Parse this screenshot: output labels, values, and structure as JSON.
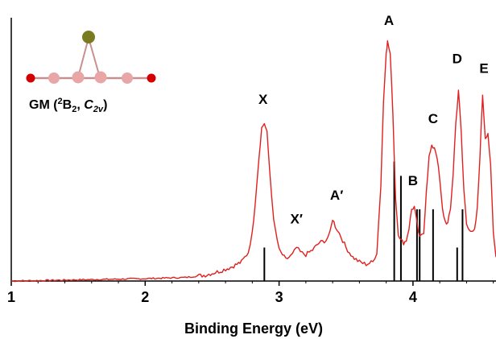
{
  "chart_data": {
    "type": "line",
    "xlabel": "Binding Energy (eV)",
    "ylabel": "",
    "xlim": [
      1.0,
      4.62
    ],
    "ylim": [
      0,
      1.0
    ],
    "xticks": [
      1,
      2,
      3,
      4
    ],
    "tick_labels": [
      "1",
      "2",
      "3",
      "4"
    ],
    "grid": false,
    "spectrum_color": "#e0201e",
    "stick_color": "#000000",
    "series": [
      {
        "x": [
          1.0,
          1.5,
          2.0,
          2.3,
          2.45,
          2.55,
          2.65,
          2.72,
          2.77,
          2.8,
          2.82,
          2.85,
          2.87,
          2.89,
          2.91,
          2.93,
          2.96,
          3.0,
          3.05,
          3.1,
          3.13,
          3.16,
          3.2,
          3.25,
          3.3,
          3.35,
          3.38,
          3.4,
          3.42,
          3.45,
          3.5,
          3.55,
          3.6,
          3.65,
          3.7,
          3.73,
          3.76,
          3.78,
          3.8,
          3.81,
          3.83,
          3.85,
          3.87,
          3.89,
          3.91,
          3.93,
          3.95,
          3.97,
          3.99,
          4.01,
          4.03,
          4.05,
          4.08,
          4.1,
          4.12,
          4.14,
          4.16,
          4.18,
          4.2,
          4.22,
          4.24,
          4.26,
          4.28,
          4.3,
          4.32,
          4.34,
          4.36,
          4.38,
          4.4,
          4.42,
          4.44,
          4.46,
          4.48,
          4.5,
          4.52,
          4.54,
          4.56,
          4.58,
          4.6,
          4.62
        ],
        "y": [
          0.0,
          0.005,
          0.01,
          0.015,
          0.025,
          0.04,
          0.06,
          0.08,
          0.12,
          0.2,
          0.32,
          0.52,
          0.64,
          0.66,
          0.62,
          0.46,
          0.25,
          0.13,
          0.09,
          0.11,
          0.14,
          0.12,
          0.11,
          0.13,
          0.16,
          0.17,
          0.2,
          0.26,
          0.23,
          0.2,
          0.14,
          0.1,
          0.08,
          0.07,
          0.08,
          0.12,
          0.4,
          0.75,
          0.96,
          1.0,
          0.95,
          0.7,
          0.35,
          0.2,
          0.17,
          0.16,
          0.17,
          0.22,
          0.3,
          0.31,
          0.24,
          0.18,
          0.2,
          0.38,
          0.52,
          0.56,
          0.56,
          0.52,
          0.42,
          0.3,
          0.25,
          0.24,
          0.3,
          0.45,
          0.66,
          0.8,
          0.62,
          0.38,
          0.24,
          0.22,
          0.2,
          0.21,
          0.3,
          0.52,
          0.78,
          0.6,
          0.62,
          0.48,
          0.2,
          0.1
        ]
      }
    ],
    "sticks": {
      "x": [
        2.89,
        3.86,
        3.91,
        4.03,
        4.05,
        4.15,
        4.33,
        4.37
      ],
      "y": [
        0.14,
        0.5,
        0.44,
        0.3,
        0.3,
        0.3,
        0.14,
        0.3
      ]
    },
    "annotations": [
      {
        "text": "X",
        "x": 2.88,
        "y": 0.74
      },
      {
        "text": "X′",
        "x": 3.13,
        "y": 0.24
      },
      {
        "text": "A′",
        "x": 3.43,
        "y": 0.34
      },
      {
        "text": "A",
        "x": 3.82,
        "y": 1.07
      },
      {
        "text": "B",
        "x": 4.0,
        "y": 0.4
      },
      {
        "text": "C",
        "x": 4.15,
        "y": 0.66
      },
      {
        "text": "D",
        "x": 4.33,
        "y": 0.91
      },
      {
        "text": "E",
        "x": 4.53,
        "y": 0.87
      }
    ]
  },
  "molecule": {
    "title_prefix": "GM (",
    "title_state_sup": "2",
    "title_state": "B",
    "title_state_sub": "2",
    "title_sep": ", ",
    "title_group": "C",
    "title_group_sub": "2v",
    "title_suffix": ")",
    "top_atom_color": "#7a7a1e",
    "mid_atom_color": "#e8a6a6",
    "end_atom_color": "#d40000",
    "bond_color": "#c79090"
  }
}
